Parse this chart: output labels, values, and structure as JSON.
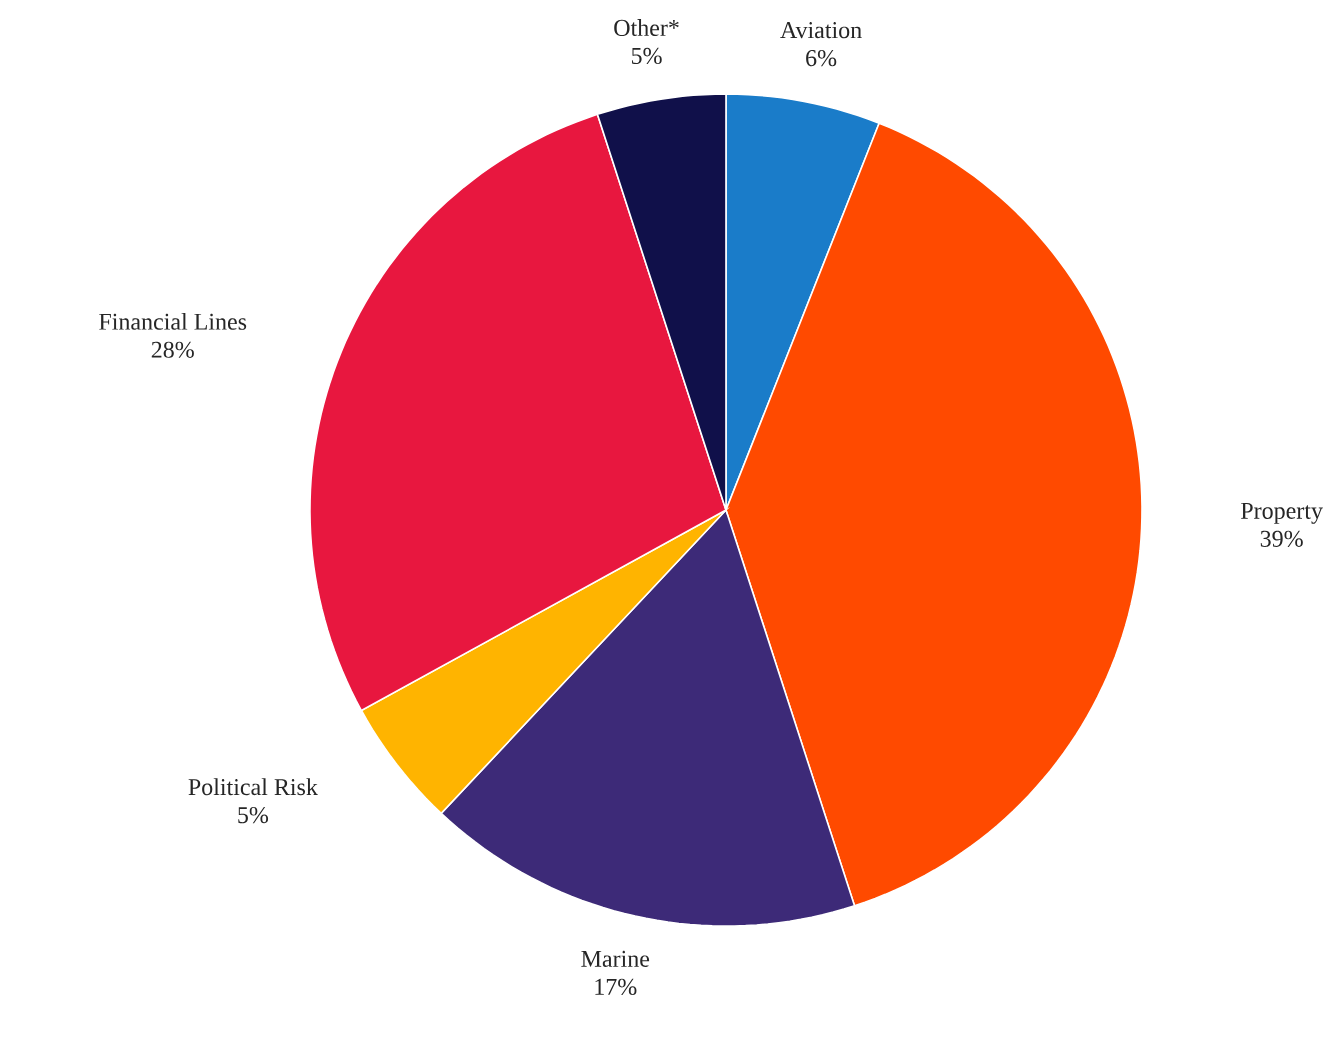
{
  "chart_data": {
    "type": "pie",
    "categories": [
      "Aviation",
      "Property",
      "Marine",
      "Political Risk",
      "Financial Lines",
      "Other*"
    ],
    "values": [
      6,
      39,
      17,
      5,
      28,
      5
    ],
    "value_labels": [
      "6%",
      "39%",
      "17%",
      "5%",
      "28%",
      "5%"
    ],
    "colors": [
      "#1a7cc9",
      "#ff4a00",
      "#3d2a78",
      "#ffb400",
      "#e8173f",
      "#10104a"
    ]
  }
}
